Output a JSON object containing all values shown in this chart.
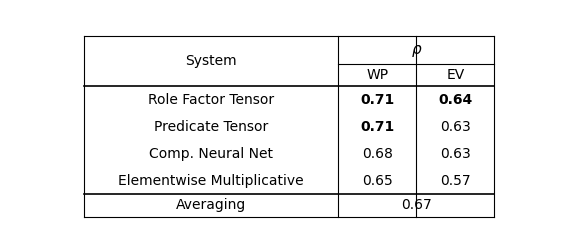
{
  "col_header_1": "System",
  "col_header_rho": "ρ",
  "col_header_wp": "WP",
  "col_header_ev": "EV",
  "rows": [
    {
      "system": "Role Factor Tensor",
      "wp": "0.71",
      "ev": "0.64",
      "wp_bold": true,
      "ev_bold": true
    },
    {
      "system": "Predicate Tensor",
      "wp": "0.71",
      "ev": "0.63",
      "wp_bold": true,
      "ev_bold": false
    },
    {
      "system": "Comp. Neural Net",
      "wp": "0.68",
      "ev": "0.63",
      "wp_bold": false,
      "ev_bold": false
    },
    {
      "system": "Elementwise Multiplicative",
      "wp": "0.65",
      "ev": "0.57",
      "wp_bold": false,
      "ev_bold": false
    }
  ],
  "footer_system": "Averaging",
  "footer_value": "0.67",
  "bg_color": "#ffffff",
  "line_color": "#000000",
  "font_size": 10,
  "header_font_size": 10
}
